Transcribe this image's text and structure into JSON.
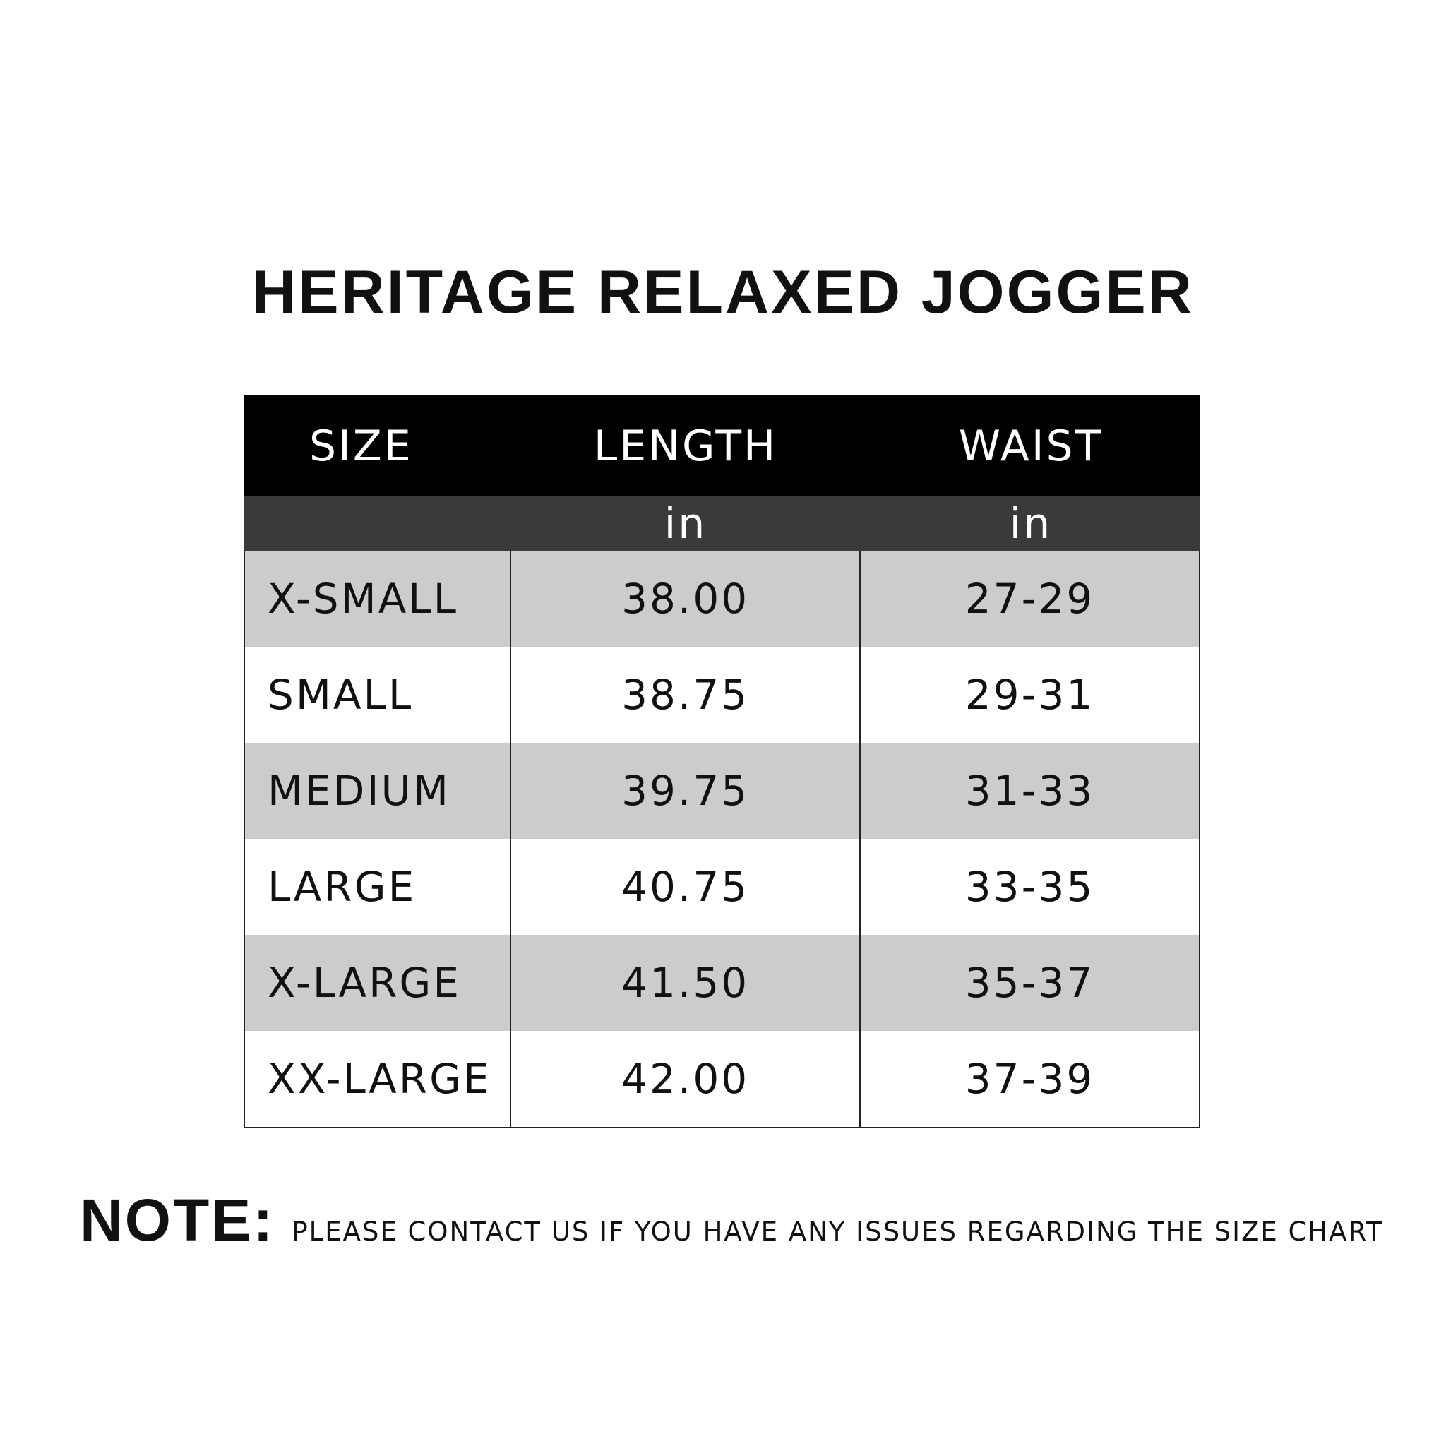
{
  "title": "HERITAGE RELAXED JOGGER",
  "table": {
    "headers": [
      "SIZE",
      "LENGTH",
      "WAIST"
    ],
    "units": [
      "",
      "in",
      "in"
    ],
    "rows": [
      {
        "size": "X-SMALL",
        "length": "38.00",
        "waist": "27-29"
      },
      {
        "size": "SMALL",
        "length": "38.75",
        "waist": "29-31"
      },
      {
        "size": "MEDIUM",
        "length": "39.75",
        "waist": "31-33"
      },
      {
        "size": "LARGE",
        "length": "40.75",
        "waist": "33-35"
      },
      {
        "size": "X-LARGE",
        "length": "41.50",
        "waist": "35-37"
      },
      {
        "size": "XX-LARGE",
        "length": "42.00",
        "waist": "37-39"
      }
    ]
  },
  "note": {
    "label": "NOTE:",
    "text": "PLEASE CONTACT US IF YOU HAVE ANY ISSUES REGARDING THE SIZE CHART"
  },
  "colors": {
    "header_bg": "#000000",
    "units_bg": "#3a3a3a",
    "shaded_row": "#cccccc"
  }
}
